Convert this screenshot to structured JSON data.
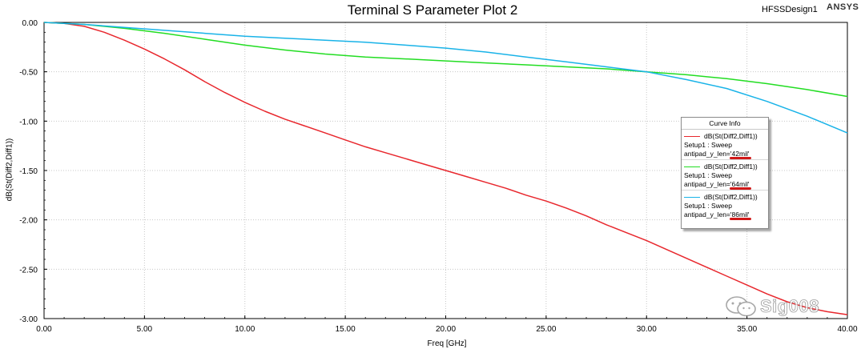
{
  "header": {
    "design_name": "HFSSDesign1",
    "brand": "ANSYS"
  },
  "watermark": {
    "icon": "wechat-icon",
    "text": "Sig008"
  },
  "chart_data": {
    "type": "line",
    "title": "Terminal S Parameter Plot 2",
    "xlabel": "Freq [GHz]",
    "ylabel": "dB(St(Diff2,Diff1))",
    "xlim": [
      0,
      40
    ],
    "ylim": [
      -3,
      0
    ],
    "x_ticks": [
      0,
      5,
      10,
      15,
      20,
      25,
      30,
      35,
      40
    ],
    "y_ticks": [
      0,
      -0.5,
      -1,
      -1.5,
      -2,
      -2.5,
      -3
    ],
    "x_tick_labels": [
      "0.00",
      "5.00",
      "10.00",
      "15.00",
      "20.00",
      "25.00",
      "30.00",
      "35.00",
      "40.00"
    ],
    "y_tick_labels": [
      "0.00",
      "-0.50",
      "-1.00",
      "-1.50",
      "-2.00",
      "-2.50",
      "-3.00"
    ],
    "grid": true,
    "legend": {
      "title": "Curve Info",
      "placement": "right"
    },
    "series": [
      {
        "name": "dB(St(Diff2,Diff1))",
        "setup": "Setup1 : Sweep",
        "param_prefix": "antipad_y_len='",
        "param_value": "42mil",
        "param_suffix": "'",
        "color": "#e8272d",
        "x": [
          0,
          1,
          2,
          3,
          4,
          5,
          6,
          7,
          8,
          9,
          10,
          11,
          12,
          13,
          14,
          15,
          16,
          17,
          18,
          19,
          20,
          21,
          22,
          23,
          24,
          25,
          26,
          27,
          28,
          29,
          30,
          31,
          32,
          33,
          34,
          35,
          36,
          37,
          38,
          39,
          40
        ],
        "y": [
          0,
          -0.01,
          -0.04,
          -0.1,
          -0.18,
          -0.27,
          -0.37,
          -0.48,
          -0.6,
          -0.71,
          -0.81,
          -0.9,
          -0.98,
          -1.05,
          -1.12,
          -1.19,
          -1.26,
          -1.32,
          -1.38,
          -1.44,
          -1.5,
          -1.56,
          -1.62,
          -1.68,
          -1.75,
          -1.81,
          -1.88,
          -1.96,
          -2.05,
          -2.13,
          -2.21,
          -2.3,
          -2.39,
          -2.48,
          -2.57,
          -2.66,
          -2.75,
          -2.83,
          -2.89,
          -2.93,
          -2.96
        ]
      },
      {
        "name": "dB(St(Diff2,Diff1))",
        "setup": "Setup1 : Sweep",
        "param_prefix": "antipad_y_len='",
        "param_value": "64mil",
        "param_suffix": "'",
        "color": "#22dd22",
        "x": [
          0,
          2,
          4,
          6,
          8,
          10,
          12,
          14,
          16,
          18,
          20,
          22,
          24,
          26,
          28,
          30,
          32,
          34,
          36,
          38,
          40
        ],
        "y": [
          0,
          -0.02,
          -0.06,
          -0.11,
          -0.17,
          -0.23,
          -0.28,
          -0.32,
          -0.35,
          -0.37,
          -0.39,
          -0.41,
          -0.43,
          -0.45,
          -0.47,
          -0.5,
          -0.53,
          -0.57,
          -0.62,
          -0.68,
          -0.75
        ]
      },
      {
        "name": "dB(St(Diff2,Diff1))",
        "setup": "Setup1 : Sweep",
        "param_prefix": "antipad_y_len='",
        "param_value": "86mil",
        "param_suffix": "'",
        "color": "#19b3e8",
        "x": [
          0,
          2,
          4,
          6,
          8,
          10,
          12,
          14,
          16,
          18,
          20,
          22,
          24,
          26,
          28,
          30,
          32,
          34,
          36,
          38,
          40
        ],
        "y": [
          0,
          -0.02,
          -0.05,
          -0.08,
          -0.11,
          -0.14,
          -0.16,
          -0.18,
          -0.2,
          -0.23,
          -0.26,
          -0.3,
          -0.35,
          -0.4,
          -0.45,
          -0.5,
          -0.58,
          -0.67,
          -0.8,
          -0.95,
          -1.12
        ]
      }
    ]
  }
}
